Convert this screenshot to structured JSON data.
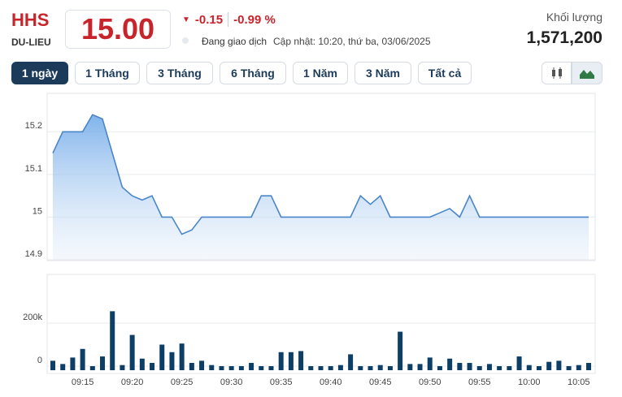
{
  "header": {
    "symbol": "HHS",
    "exchange": "DU-LIEU",
    "price": "15.00",
    "change": "-0.15",
    "change_pct": "-0.99 %",
    "status": "Đang giao dịch",
    "updated": "Cập nhật: 10:20, thứ ba, 03/06/2025",
    "volume_label": "Khối lượng",
    "volume": "1,571,200"
  },
  "tabs": [
    "1 ngày",
    "1 Tháng",
    "3 Tháng",
    "6 Tháng",
    "1 Năm",
    "3 Năm",
    "Tất cả"
  ],
  "chart_data": [
    {
      "type": "line",
      "color": "#4a86c8",
      "categories": [
        null,
        null,
        null,
        "09:15",
        null,
        null,
        null,
        null,
        "09:20",
        null,
        null,
        null,
        null,
        "09:25",
        null,
        null,
        null,
        null,
        "09:30",
        null,
        null,
        null,
        null,
        "09:35",
        null,
        null,
        null,
        null,
        "09:40",
        null,
        null,
        null,
        null,
        "09:45",
        null,
        null,
        null,
        null,
        "09:50",
        null,
        null,
        null,
        null,
        "09:55",
        null,
        null,
        null,
        null,
        "10:00",
        null,
        null,
        null,
        null,
        "10:05",
        null
      ],
      "values": [
        15.15,
        15.2,
        15.2,
        15.2,
        15.24,
        15.23,
        15.15,
        15.07,
        15.05,
        15.04,
        15.05,
        15,
        15,
        14.96,
        14.97,
        15,
        15,
        15,
        15,
        15,
        15,
        15.05,
        15.05,
        15,
        15,
        15,
        15,
        15,
        15,
        15,
        15,
        15.05,
        15.03,
        15.05,
        15,
        15,
        15,
        15,
        15,
        15.01,
        15.02,
        15,
        15.05,
        15,
        15,
        15,
        15,
        15,
        15,
        15,
        15,
        15,
        15,
        15,
        15
      ],
      "ylim": [
        14.9,
        15.29
      ],
      "yticks": [
        14.9,
        15,
        15.1,
        15.2
      ],
      "grid": true
    },
    {
      "type": "bar",
      "color": "#0d3f66",
      "categories": [
        null,
        null,
        null,
        "09:15",
        null,
        null,
        null,
        null,
        "09:20",
        null,
        null,
        null,
        null,
        "09:25",
        null,
        null,
        null,
        null,
        "09:30",
        null,
        null,
        null,
        null,
        "09:35",
        null,
        null,
        null,
        null,
        "09:40",
        null,
        null,
        null,
        null,
        "09:45",
        null,
        null,
        null,
        null,
        "09:50",
        null,
        null,
        null,
        null,
        "09:55",
        null,
        null,
        null,
        null,
        "10:00",
        null,
        null,
        null,
        null,
        "10:05",
        null
      ],
      "values": [
        25000,
        10000,
        40000,
        80000,
        0,
        45000,
        255000,
        5000,
        145000,
        35000,
        15000,
        100000,
        65000,
        105000,
        15000,
        25000,
        5000,
        0,
        0,
        0,
        15000,
        0,
        0,
        65000,
        65000,
        70000,
        0,
        0,
        0,
        5000,
        55000,
        0,
        0,
        5000,
        0,
        160000,
        10000,
        10000,
        40000,
        0,
        35000,
        15000,
        15000,
        0,
        10000,
        0,
        0,
        45000,
        5000,
        0,
        20000,
        25000,
        0,
        5000,
        15000
      ],
      "ylim": [
        0,
        426000
      ],
      "yticks": [
        0,
        {
          "value": 200000,
          "label": "200k"
        }
      ],
      "grid": true
    }
  ]
}
